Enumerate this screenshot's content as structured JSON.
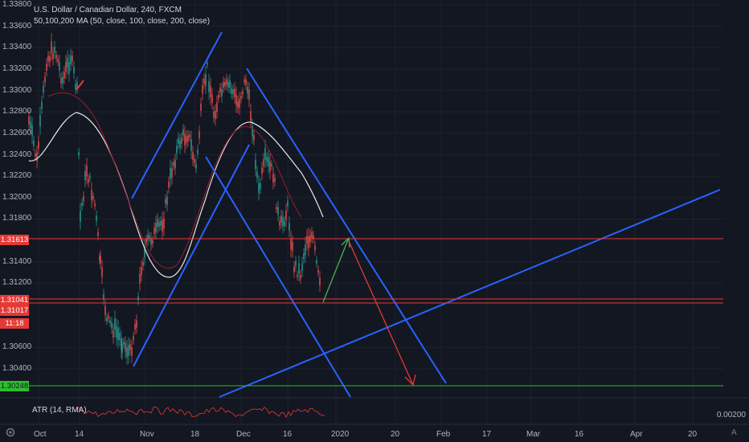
{
  "header": {
    "title": "U.S. Dollar / Canadian Dollar, 240, FXCM",
    "indicator": "50,100,200 MA (50, close, 100, close, 200, close)"
  },
  "atr": {
    "label": "ATR (14, RMA)",
    "scale_label": "0.00200"
  },
  "price_axis": {
    "labels": [
      "1.33800",
      "1.33600",
      "1.33400",
      "1.33200",
      "1.33000",
      "1.32800",
      "1.32600",
      "1.32400",
      "1.32200",
      "1.32000",
      "1.31800",
      "1.31400",
      "1.31200",
      "1.30600",
      "1.30400"
    ]
  },
  "price_badges": [
    {
      "label": "1.31613",
      "color": "#e53935",
      "text_color": "#ffffff"
    },
    {
      "label": "1.31041",
      "color": "#e53935",
      "text_color": "#ffffff"
    },
    {
      "label": "1.31017",
      "color": "#e53935",
      "text_color": "#ffffff"
    },
    {
      "label": "11:18",
      "color": "#e53935",
      "text_color": "#ffffff"
    },
    {
      "label": "1.30248",
      "color": "#2ebd2e",
      "text_color": "#131722"
    }
  ],
  "time_axis": {
    "labels": [
      "Oct",
      "14",
      "Nov",
      "18",
      "Dec",
      "16",
      "2020",
      "20",
      "Feb",
      "17",
      "Mar",
      "16",
      "Apr",
      "20"
    ]
  },
  "colors": {
    "background": "#131722",
    "channel_lines": "#2962ff",
    "horizontal_red": "#e53935",
    "horizontal_green": "#2ebd2e",
    "ma_white": "#e8e8e8",
    "ma_red": "#8b1f2a",
    "arrow_up": "#4caf50",
    "arrow_down": "#e53935"
  },
  "controls": {
    "auto_scale": "A"
  },
  "icons": {
    "settings": "gear-icon"
  }
}
